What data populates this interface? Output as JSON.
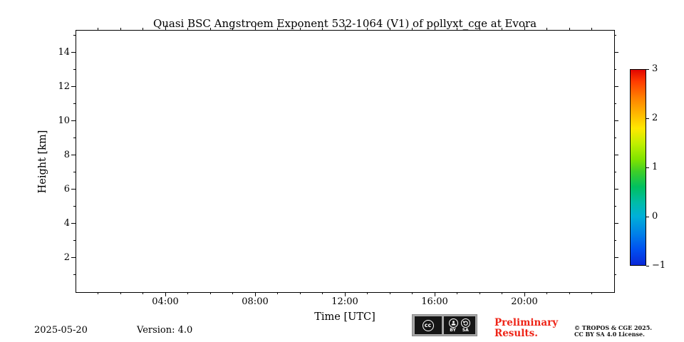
{
  "chart_data": {
    "type": "heatmap",
    "title": "Quasi BSC Angstroem Exponent 532-1064 (V1) of pollyxt_cge at Evora",
    "xlabel": "Time [UTC]",
    "ylabel": "Height [km]",
    "x_range_hours": [
      0,
      24
    ],
    "y_range_km": [
      0,
      15.33
    ],
    "x_major_hours": [
      4,
      8,
      12,
      16,
      20
    ],
    "x_major_labels": [
      "04:00",
      "08:00",
      "12:00",
      "16:00",
      "20:00"
    ],
    "x_minor_step_hours": 1,
    "y_major_km": [
      2,
      4,
      6,
      8,
      10,
      12,
      14
    ],
    "y_major_labels": [
      "2",
      "4",
      "6",
      "8",
      "10",
      "12",
      "14"
    ],
    "y_minor_step_km": 1,
    "plotted_values": [],
    "grid": false,
    "colorbar": {
      "min": -1,
      "max": 3,
      "ticks": [
        3,
        2,
        1,
        0,
        -1
      ],
      "tick_labels": [
        "3",
        "2",
        "1",
        "0",
        "−1"
      ],
      "gradient_stops": [
        {
          "pos": 0,
          "color": "#e10600"
        },
        {
          "pos": 6,
          "color": "#ff3c00"
        },
        {
          "pos": 14,
          "color": "#ff7e00"
        },
        {
          "pos": 22,
          "color": "#ffb400"
        },
        {
          "pos": 30,
          "color": "#ffe800"
        },
        {
          "pos": 38,
          "color": "#bfef00"
        },
        {
          "pos": 46,
          "color": "#7fe300"
        },
        {
          "pos": 52,
          "color": "#3ecf28"
        },
        {
          "pos": 60,
          "color": "#00c060"
        },
        {
          "pos": 68,
          "color": "#00bca8"
        },
        {
          "pos": 75,
          "color": "#00b0d8"
        },
        {
          "pos": 84,
          "color": "#0080e8"
        },
        {
          "pos": 92,
          "color": "#0050f0"
        },
        {
          "pos": 100,
          "color": "#0a28d8"
        }
      ]
    }
  },
  "footer": {
    "date": "2025-05-20",
    "version": "Version: 4.0",
    "preliminary_line1": "Preliminary",
    "preliminary_line2": "Results.",
    "copyright_line1": "© TROPOS & CGE 2025.",
    "copyright_line2": "CC BY SA 4.0 License.",
    "license": {
      "cc_label": "cc",
      "by_label": "BY",
      "sa_label": "SA"
    }
  }
}
